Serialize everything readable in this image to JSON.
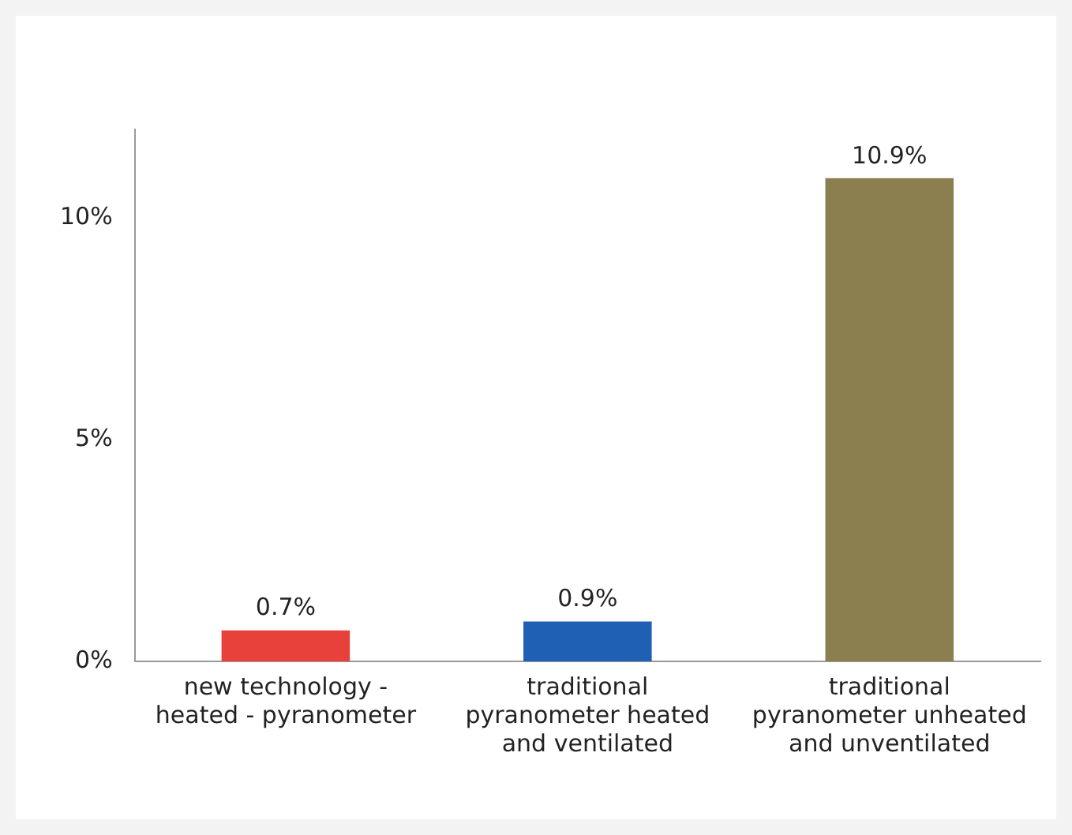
{
  "chart_data": {
    "type": "bar",
    "categories": [
      "new technology - heated - pyranometer",
      "traditional pyranometer heated and ventilated",
      "traditional pyranometer unheated and unventilated"
    ],
    "values": [
      0.7,
      0.9,
      10.9
    ],
    "colors": [
      "#e8413c",
      "#1f5fb4",
      "#8b7f4f"
    ],
    "value_labels": [
      "0.7%",
      "0.9%",
      "10.9%"
    ],
    "ylim": [
      0,
      12
    ],
    "yticks": [
      {
        "value": 0,
        "label": "0%"
      },
      {
        "value": 5,
        "label": "5%"
      },
      {
        "value": 10,
        "label": "10%"
      }
    ],
    "grid": false,
    "legend": false
  }
}
